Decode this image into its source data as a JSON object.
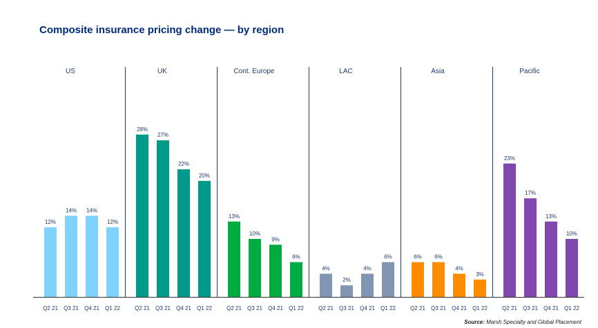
{
  "title": "Composite insurance pricing change — by region",
  "source": {
    "label": "Source:",
    "text": "Marsh Specialty and Global Placement"
  },
  "chart_data": {
    "type": "bar",
    "title": "Composite insurance pricing change — by region",
    "categories": [
      "Q2 21",
      "Q3 21",
      "Q4 21",
      "Q1 22"
    ],
    "ylim": [
      0,
      30
    ],
    "grid": false,
    "series": [
      {
        "name": "US",
        "color": "#7fd3fb",
        "values": [
          12,
          14,
          14,
          12
        ],
        "labels": [
          "12%",
          "14%",
          "14%",
          "12%"
        ]
      },
      {
        "name": "UK",
        "color": "#009a8a",
        "values": [
          28,
          27,
          22,
          20
        ],
        "labels": [
          "28%",
          "27%",
          "22%",
          "20%"
        ]
      },
      {
        "name": "Cont. Europe",
        "color": "#00ac41",
        "values": [
          13,
          10,
          9,
          6
        ],
        "labels": [
          "13%",
          "10%",
          "9%",
          "6%"
        ]
      },
      {
        "name": "LAC",
        "color": "#8096b2",
        "values": [
          4,
          2,
          4,
          6
        ],
        "labels": [
          "4%",
          "2%",
          "4%",
          "6%"
        ]
      },
      {
        "name": "Asia",
        "color": "#ff8c00",
        "values": [
          6,
          6,
          4,
          3
        ],
        "labels": [
          "6%",
          "6%",
          "4%",
          "3%"
        ]
      },
      {
        "name": "Pacific",
        "color": "#8246af",
        "values": [
          23,
          17,
          13,
          10
        ],
        "labels": [
          "23%",
          "17%",
          "13%",
          "10%"
        ]
      }
    ]
  }
}
